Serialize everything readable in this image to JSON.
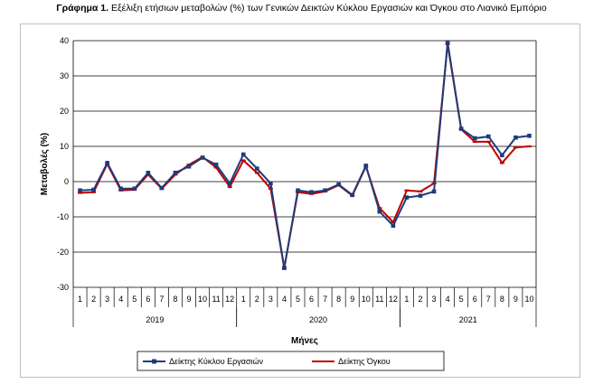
{
  "title": {
    "prefix": "Γράφημα 1.",
    "text": " Εξέλιξη ετήσιων μεταβολών (%) των Γενικών Δεικτών Κύκλου Εργασιών και Όγκου στο Λιανικό Εμπόριο"
  },
  "chart_data": {
    "type": "line",
    "title": "Γράφημα 1. Εξέλιξη ετήσιων μεταβολών (%) των Γενικών Δεικτών Κύκλου Εργασιών και Όγκου στο Λιανικό Εμπόριο",
    "xlabel": "Μήνες",
    "ylabel": "Μεταβολές (%)",
    "ylim": [
      -30,
      40
    ],
    "yticks": [
      40,
      30,
      20,
      10,
      0,
      -10,
      -20,
      -30
    ],
    "grid": true,
    "legend_position": "bottom",
    "months": [
      "1",
      "2",
      "3",
      "4",
      "5",
      "6",
      "7",
      "8",
      "9",
      "10",
      "11",
      "12",
      "1",
      "2",
      "3",
      "4",
      "5",
      "6",
      "7",
      "8",
      "9",
      "10",
      "11",
      "12",
      "1",
      "2",
      "3",
      "4",
      "5",
      "6",
      "7",
      "8",
      "9",
      "10"
    ],
    "years": [
      {
        "label": "2019",
        "start": 0,
        "count": 12
      },
      {
        "label": "2020",
        "start": 12,
        "count": 12
      },
      {
        "label": "2021",
        "start": 24,
        "count": 10
      }
    ],
    "series": [
      {
        "name": "Δείκτης Κύκλου Εργασιών",
        "color": "#1f3c7a",
        "marker": "square",
        "values": [
          -2.5,
          -2.3,
          5.3,
          -2.0,
          -2.0,
          2.5,
          -1.8,
          2.5,
          4.3,
          6.8,
          4.8,
          -0.5,
          7.7,
          3.7,
          -0.5,
          -24.5,
          -2.5,
          -3.0,
          -2.5,
          -0.8,
          -3.8,
          4.5,
          -8.5,
          -12.5,
          -4.5,
          -4.0,
          -2.8,
          39.5,
          15.0,
          12.3,
          12.8,
          7.5,
          12.5,
          13.0
        ]
      },
      {
        "name": "Δείκτης Όγκου",
        "color": "#c00000",
        "marker": "dash",
        "values": [
          -3.2,
          -3.0,
          5.0,
          -2.5,
          -2.3,
          2.0,
          -2.0,
          2.0,
          4.8,
          7.0,
          4.0,
          -1.5,
          6.0,
          2.5,
          -2.0,
          -24.5,
          -3.0,
          -3.5,
          -2.8,
          -1.0,
          -4.0,
          4.3,
          -7.5,
          -11.5,
          -2.5,
          -2.8,
          -0.5,
          39.0,
          14.8,
          11.3,
          11.3,
          5.3,
          9.7,
          10.0
        ]
      }
    ]
  }
}
